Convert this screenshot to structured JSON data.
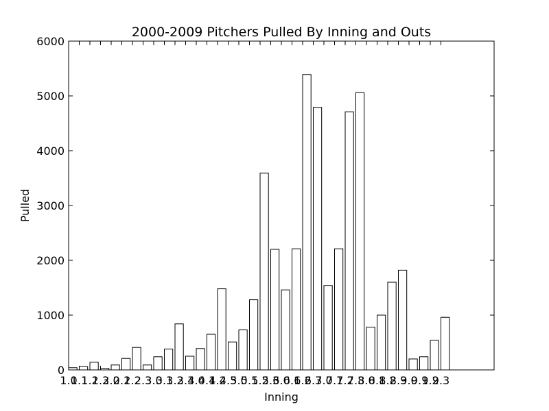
{
  "chart_data": {
    "type": "bar",
    "title": "2000-2009 Pitchers Pulled By Inning and Outs",
    "xlabel": "Inning",
    "ylabel": "Pulled",
    "ylim": [
      0,
      6000
    ],
    "y_ticks": [
      "0",
      "1000",
      "2000",
      "3000",
      "4000",
      "5000",
      "6000"
    ],
    "grid": false,
    "categories": [
      "1.0",
      "1.1",
      "1.2",
      "1.3",
      "2.0",
      "2.1",
      "2.2",
      "2.3",
      "3.0",
      "3.1",
      "3.2",
      "3.3",
      "4.0",
      "4.1",
      "4.2",
      "4.3",
      "5.0",
      "5.1",
      "5.2",
      "5.3",
      "6.0",
      "6.1",
      "6.2",
      "6.3",
      "7.0",
      "7.1",
      "7.2",
      "7.3",
      "8.0",
      "8.1",
      "8.2",
      "8.3",
      "9.0",
      "9.1",
      "9.2",
      "9.3"
    ],
    "values": [
      40,
      60,
      140,
      30,
      90,
      210,
      410,
      90,
      240,
      380,
      840,
      250,
      390,
      650,
      1480,
      510,
      730,
      1280,
      3590,
      2200,
      1460,
      2210,
      5390,
      4790,
      1540,
      2210,
      4710,
      5060,
      780,
      1000,
      1600,
      1820,
      200,
      240,
      540,
      960
    ],
    "colors": {
      "bar_fill": "#ffffff",
      "bar_stroke": "#000000",
      "axis": "#000000"
    }
  }
}
